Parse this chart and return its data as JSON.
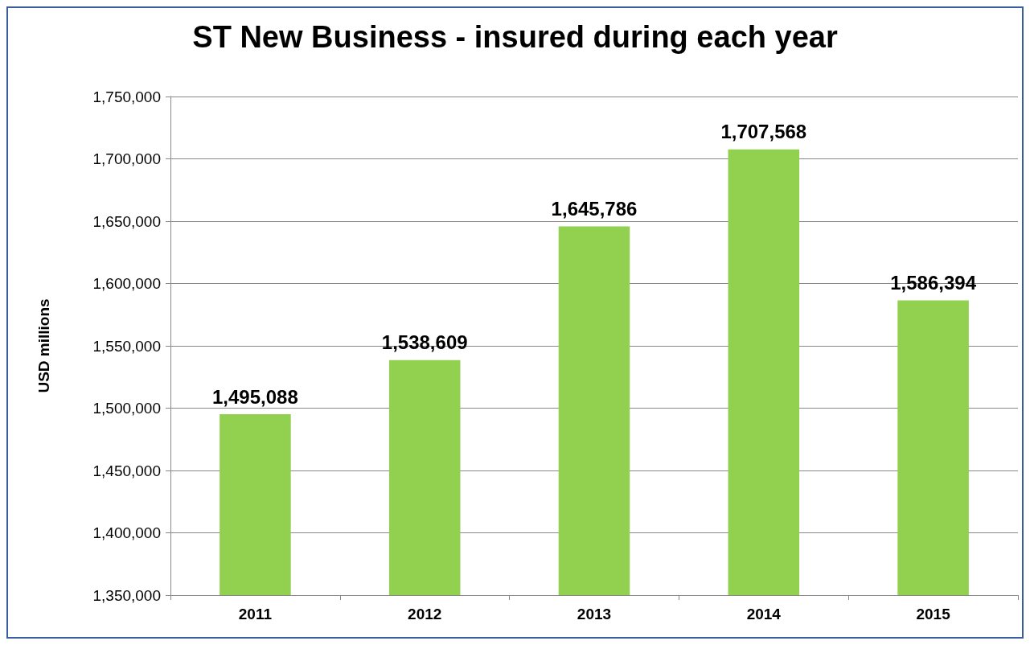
{
  "chart_data": {
    "type": "bar",
    "title": "ST New Business - insured during each year",
    "ylabel": "USD millions",
    "categories": [
      "2011",
      "2012",
      "2013",
      "2014",
      "2015"
    ],
    "values": [
      1495088,
      1538609,
      1645786,
      1707568,
      1586394
    ],
    "value_labels": [
      "1,495,088",
      "1,538,609",
      "1,645,786",
      "1,707,568",
      "1,586,394"
    ],
    "color": "#92d050",
    "ylim": [
      1350000,
      1750000
    ],
    "yticks": [
      {
        "value": 1350000,
        "label": "1,350,000"
      },
      {
        "value": 1400000,
        "label": "1,400,000"
      },
      {
        "value": 1450000,
        "label": "1,450,000"
      },
      {
        "value": 1500000,
        "label": "1,500,000"
      },
      {
        "value": 1550000,
        "label": "1,550,000"
      },
      {
        "value": 1600000,
        "label": "1,600,000"
      },
      {
        "value": 1650000,
        "label": "1,650,000"
      },
      {
        "value": 1700000,
        "label": "1,700,000"
      },
      {
        "value": 1750000,
        "label": "1,750,000"
      }
    ],
    "grid": "y"
  }
}
